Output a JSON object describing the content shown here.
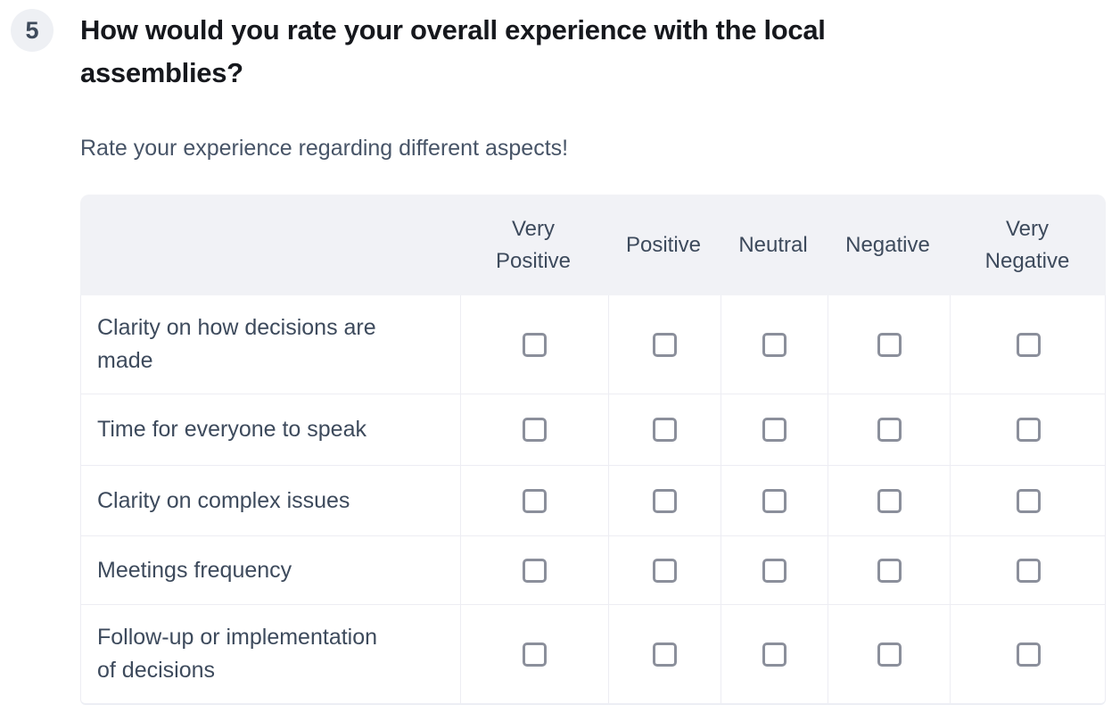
{
  "question": {
    "number": "5",
    "title": "How would you rate your overall experience with the local assemblies?",
    "subtitle": "Rate your experience regarding different aspects!"
  },
  "matrix": {
    "columns": [
      "Very Positive",
      "Positive",
      "Neutral",
      "Negative",
      "Very Negative"
    ],
    "rows": [
      {
        "label": "Clarity on how decisions are made",
        "values": [
          false,
          false,
          false,
          false,
          false
        ]
      },
      {
        "label": "Time for everyone to speak",
        "values": [
          false,
          false,
          false,
          false,
          false
        ]
      },
      {
        "label": "Clarity on complex issues",
        "values": [
          false,
          false,
          false,
          false,
          false
        ]
      },
      {
        "label": "Meetings frequency",
        "values": [
          false,
          false,
          false,
          false,
          false
        ]
      },
      {
        "label": "Follow-up or implementation of decisions",
        "values": [
          false,
          false,
          false,
          false,
          false
        ]
      }
    ]
  },
  "colors": {
    "badge_bg": "#eef0f4",
    "badge_text": "#3e4a5b",
    "title_text": "#16181d",
    "subtitle_text": "#475467",
    "header_bg": "#f1f2f6",
    "row_text": "#3d4a5c",
    "border": "#ededf3",
    "checkbox_border": "#8b8f9b"
  }
}
